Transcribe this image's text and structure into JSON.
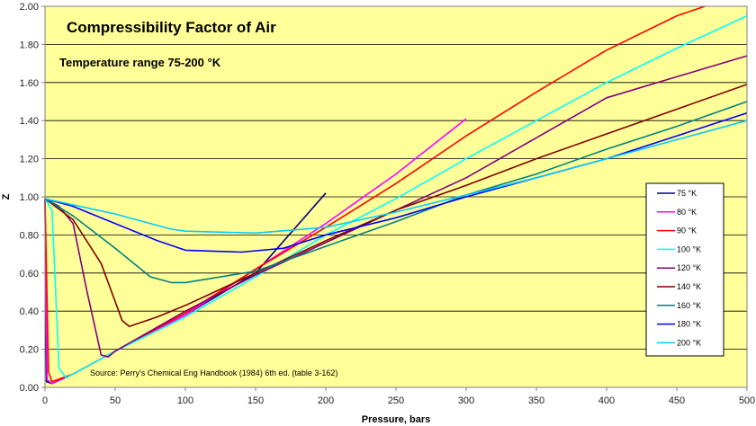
{
  "chart_data": {
    "type": "line",
    "title": "Compressibility Factor of Air",
    "subtitle": "Temperature range 75-200 °K",
    "xlabel": "Pressure, bars",
    "ylabel": "Z",
    "source_note": "Source: Perry's Chemical Eng Handbook (1984) 6th ed.  (table 3-162)",
    "xlim": [
      0,
      500
    ],
    "ylim": [
      0,
      2
    ],
    "x_ticks": [
      "0",
      "50",
      "100",
      "150",
      "200",
      "250",
      "300",
      "350",
      "400",
      "450",
      "500"
    ],
    "y_ticks": [
      "0.00",
      "0.20",
      "0.40",
      "0.60",
      "0.80",
      "1.00",
      "1.20",
      "1.40",
      "1.60",
      "1.80",
      "2.00"
    ],
    "grid": true,
    "legend_position": "right",
    "plot_background": "#ffff99",
    "series": [
      {
        "name": "75 °K",
        "color": "#000080",
        "points": [
          [
            0,
            0.99
          ],
          [
            1,
            0.03
          ],
          [
            5,
            0.02
          ],
          [
            20,
            0.07
          ],
          [
            50,
            0.19
          ],
          [
            100,
            0.38
          ],
          [
            150,
            0.6
          ],
          [
            200,
            1.02
          ]
        ]
      },
      {
        "name": "80 °K",
        "color": "#ff00ff",
        "points": [
          [
            0,
            0.99
          ],
          [
            1.5,
            0.04
          ],
          [
            5,
            0.02
          ],
          [
            20,
            0.07
          ],
          [
            50,
            0.19
          ],
          [
            100,
            0.38
          ],
          [
            150,
            0.62
          ],
          [
            200,
            0.86
          ],
          [
            250,
            1.12
          ],
          [
            300,
            1.41
          ]
        ]
      },
      {
        "name": "90 °K",
        "color": "#ff0000",
        "points": [
          [
            0,
            0.99
          ],
          [
            2.5,
            0.08
          ],
          [
            5,
            0.03
          ],
          [
            20,
            0.07
          ],
          [
            50,
            0.19
          ],
          [
            100,
            0.39
          ],
          [
            150,
            0.62
          ],
          [
            200,
            0.84
          ],
          [
            250,
            1.07
          ],
          [
            300,
            1.32
          ],
          [
            350,
            1.55
          ],
          [
            400,
            1.77
          ],
          [
            450,
            1.95
          ],
          [
            470,
            2.0
          ]
        ]
      },
      {
        "name": "100 °K",
        "color": "#00ffff",
        "points": [
          [
            0,
            0.99
          ],
          [
            5,
            0.93
          ],
          [
            10,
            0.1
          ],
          [
            15,
            0.05
          ],
          [
            20,
            0.07
          ],
          [
            50,
            0.19
          ],
          [
            100,
            0.37
          ],
          [
            150,
            0.58
          ],
          [
            200,
            0.8
          ],
          [
            250,
            0.99
          ],
          [
            300,
            1.2
          ],
          [
            350,
            1.4
          ],
          [
            400,
            1.6
          ],
          [
            450,
            1.78
          ],
          [
            500,
            1.95
          ]
        ]
      },
      {
        "name": "120 °K",
        "color": "#800080",
        "points": [
          [
            0,
            0.99
          ],
          [
            10,
            0.95
          ],
          [
            20,
            0.86
          ],
          [
            30,
            0.5
          ],
          [
            40,
            0.17
          ],
          [
            45,
            0.16
          ],
          [
            50,
            0.19
          ],
          [
            100,
            0.4
          ],
          [
            150,
            0.59
          ],
          [
            200,
            0.76
          ],
          [
            250,
            0.93
          ],
          [
            300,
            1.1
          ],
          [
            350,
            1.31
          ],
          [
            400,
            1.52
          ],
          [
            450,
            1.63
          ],
          [
            500,
            1.74
          ]
        ]
      },
      {
        "name": "140 °K",
        "color": "#800000",
        "points": [
          [
            0,
            0.99
          ],
          [
            20,
            0.88
          ],
          [
            40,
            0.65
          ],
          [
            55,
            0.35
          ],
          [
            60,
            0.32
          ],
          [
            80,
            0.37
          ],
          [
            100,
            0.43
          ],
          [
            150,
            0.6
          ],
          [
            200,
            0.77
          ],
          [
            250,
            0.93
          ],
          [
            300,
            1.06
          ],
          [
            350,
            1.2
          ],
          [
            400,
            1.33
          ],
          [
            450,
            1.46
          ],
          [
            500,
            1.59
          ]
        ]
      },
      {
        "name": "160 °K",
        "color": "#008080",
        "points": [
          [
            0,
            0.99
          ],
          [
            20,
            0.9
          ],
          [
            50,
            0.73
          ],
          [
            75,
            0.58
          ],
          [
            90,
            0.55
          ],
          [
            100,
            0.55
          ],
          [
            150,
            0.61
          ],
          [
            200,
            0.74
          ],
          [
            250,
            0.87
          ],
          [
            300,
            1.01
          ],
          [
            350,
            1.12
          ],
          [
            400,
            1.25
          ],
          [
            450,
            1.37
          ],
          [
            500,
            1.5
          ]
        ]
      },
      {
        "name": "180 °K",
        "color": "#0000ff",
        "points": [
          [
            0,
            0.99
          ],
          [
            20,
            0.95
          ],
          [
            50,
            0.86
          ],
          [
            80,
            0.77
          ],
          [
            100,
            0.72
          ],
          [
            140,
            0.71
          ],
          [
            170,
            0.73
          ],
          [
            200,
            0.8
          ],
          [
            250,
            0.89
          ],
          [
            300,
            1.0
          ],
          [
            350,
            1.1
          ],
          [
            400,
            1.2
          ],
          [
            450,
            1.32
          ],
          [
            500,
            1.44
          ]
        ]
      },
      {
        "name": "200 °K",
        "color": "#00ccff",
        "points": [
          [
            0,
            0.99
          ],
          [
            50,
            0.91
          ],
          [
            90,
            0.83
          ],
          [
            100,
            0.82
          ],
          [
            150,
            0.81
          ],
          [
            200,
            0.84
          ],
          [
            250,
            0.92
          ],
          [
            300,
            1.01
          ],
          [
            350,
            1.1
          ],
          [
            400,
            1.2
          ],
          [
            450,
            1.3
          ],
          [
            500,
            1.4
          ]
        ]
      }
    ]
  }
}
